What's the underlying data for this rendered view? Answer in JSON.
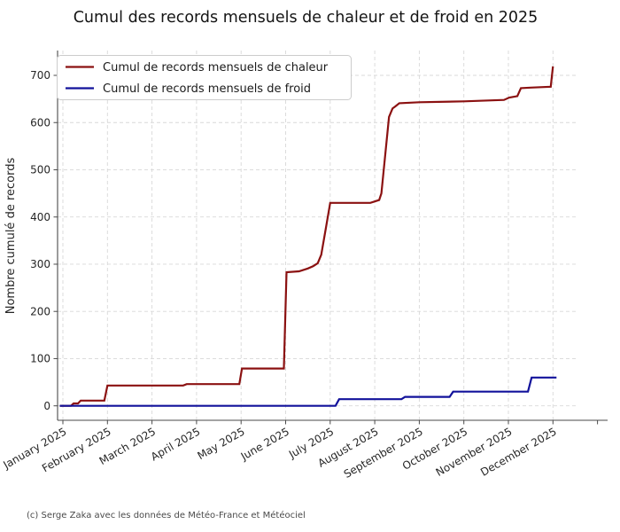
{
  "title": "Cumul des records mensuels de chaleur et de froid en 2025",
  "footer": "(c) Serge Zaka avec les données de Météo-France et Météociel",
  "chart_data": {
    "type": "line",
    "title": "Cumul des records mensuels de chaleur et de froid en 2025",
    "xlabel": "",
    "ylabel": "Nombre cumulé de records",
    "x_tick_labels": [
      "January 2025",
      "February 2025",
      "March 2025",
      "April 2025",
      "May 2025",
      "June 2025",
      "July 2025",
      "August 2025",
      "September 2025",
      "October 2025",
      "November 2025",
      "December 2025"
    ],
    "y_ticks": [
      0,
      100,
      200,
      300,
      400,
      500,
      600,
      700
    ],
    "ylim": [
      -30,
      750
    ],
    "grid": true,
    "grid_style": "dashed",
    "legend_position": "upper left",
    "colors": {
      "heat": "#8b1111",
      "cold": "#12129b",
      "grid": "#d8d8d8"
    },
    "series": [
      {
        "name": "Cumul de records mensuels de chaleur",
        "color": "#8b1111",
        "points": [
          [
            -0.07,
            0
          ],
          [
            0.18,
            0
          ],
          [
            0.24,
            5
          ],
          [
            0.34,
            5
          ],
          [
            0.4,
            11
          ],
          [
            0.93,
            11
          ],
          [
            1.0,
            43
          ],
          [
            2.7,
            43
          ],
          [
            2.78,
            46
          ],
          [
            3.96,
            46
          ],
          [
            4.02,
            79
          ],
          [
            4.96,
            79
          ],
          [
            5.02,
            283
          ],
          [
            5.3,
            285
          ],
          [
            5.5,
            291
          ],
          [
            5.62,
            296
          ],
          [
            5.72,
            302
          ],
          [
            5.8,
            320
          ],
          [
            5.9,
            375
          ],
          [
            6.0,
            430
          ],
          [
            6.9,
            430
          ],
          [
            7.0,
            433
          ],
          [
            7.1,
            436
          ],
          [
            7.15,
            450
          ],
          [
            7.32,
            612
          ],
          [
            7.4,
            630
          ],
          [
            7.46,
            634
          ],
          [
            7.55,
            641
          ],
          [
            8.0,
            643
          ],
          [
            9.0,
            645
          ],
          [
            9.9,
            648
          ],
          [
            10.02,
            653
          ],
          [
            10.2,
            656
          ],
          [
            10.28,
            673
          ],
          [
            10.5,
            674
          ],
          [
            10.95,
            676
          ],
          [
            11.0,
            719
          ]
        ]
      },
      {
        "name": "Cumul de records mensuels de froid",
        "color": "#12129b",
        "points": [
          [
            -0.07,
            0
          ],
          [
            6.12,
            0
          ],
          [
            6.2,
            14
          ],
          [
            7.6,
            14
          ],
          [
            7.68,
            19
          ],
          [
            8.68,
            19
          ],
          [
            8.76,
            30
          ],
          [
            10.44,
            30
          ],
          [
            10.52,
            60
          ],
          [
            11.08,
            60
          ]
        ]
      }
    ]
  }
}
